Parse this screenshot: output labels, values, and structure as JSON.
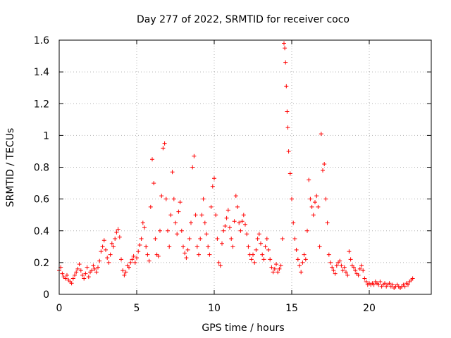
{
  "chart_data": {
    "type": "scatter",
    "title": "Day 277 of 2022, SRMTID for receiver coco",
    "xlabel": "GPS time / hours",
    "ylabel": "SRMTID / TECUs",
    "xlim": [
      0,
      24
    ],
    "ylim": [
      0,
      1.6
    ],
    "x_ticks": [
      0,
      5,
      10,
      15,
      20
    ],
    "y_ticks": [
      0,
      0.2,
      0.4,
      0.6,
      0.8,
      1,
      1.2,
      1.4,
      1.6
    ],
    "x_tick_labels": [
      "0",
      "5",
      "10",
      "15",
      "20"
    ],
    "y_tick_labels": [
      "0",
      "0.2",
      "0.4",
      "0.6",
      "0.8",
      "1",
      "1.2",
      "1.4",
      "1.6"
    ],
    "grid": true,
    "marker": "plus",
    "series": [
      {
        "name": "SRMTID",
        "color": "#ff0000",
        "points": [
          [
            0.0,
            0.15
          ],
          [
            0.1,
            0.17
          ],
          [
            0.2,
            0.13
          ],
          [
            0.3,
            0.11
          ],
          [
            0.4,
            0.1
          ],
          [
            0.5,
            0.12
          ],
          [
            0.6,
            0.09
          ],
          [
            0.7,
            0.08
          ],
          [
            0.8,
            0.07
          ],
          [
            0.9,
            0.1
          ],
          [
            1.0,
            0.12
          ],
          [
            1.1,
            0.14
          ],
          [
            1.2,
            0.16
          ],
          [
            1.3,
            0.19
          ],
          [
            1.4,
            0.15
          ],
          [
            1.5,
            0.12
          ],
          [
            1.6,
            0.1
          ],
          [
            1.7,
            0.13
          ],
          [
            1.8,
            0.17
          ],
          [
            1.9,
            0.11
          ],
          [
            2.0,
            0.14
          ],
          [
            2.1,
            0.15
          ],
          [
            2.2,
            0.18
          ],
          [
            2.3,
            0.16
          ],
          [
            2.4,
            0.14
          ],
          [
            2.5,
            0.17
          ],
          [
            2.6,
            0.21
          ],
          [
            2.7,
            0.27
          ],
          [
            2.8,
            0.3
          ],
          [
            2.9,
            0.34
          ],
          [
            3.0,
            0.28
          ],
          [
            3.1,
            0.23
          ],
          [
            3.2,
            0.2
          ],
          [
            3.3,
            0.25
          ],
          [
            3.4,
            0.32
          ],
          [
            3.5,
            0.3
          ],
          [
            3.6,
            0.35
          ],
          [
            3.7,
            0.39
          ],
          [
            3.8,
            0.41
          ],
          [
            3.9,
            0.36
          ],
          [
            4.0,
            0.22
          ],
          [
            4.1,
            0.15
          ],
          [
            4.2,
            0.12
          ],
          [
            4.3,
            0.14
          ],
          [
            4.4,
            0.18
          ],
          [
            4.5,
            0.17
          ],
          [
            4.6,
            0.2
          ],
          [
            4.7,
            0.22
          ],
          [
            4.8,
            0.24
          ],
          [
            4.9,
            0.2
          ],
          [
            5.0,
            0.23
          ],
          [
            5.1,
            0.27
          ],
          [
            5.2,
            0.31
          ],
          [
            5.3,
            0.35
          ],
          [
            5.4,
            0.45
          ],
          [
            5.5,
            0.42
          ],
          [
            5.6,
            0.3
          ],
          [
            5.7,
            0.25
          ],
          [
            5.8,
            0.21
          ],
          [
            5.9,
            0.55
          ],
          [
            6.0,
            0.85
          ],
          [
            6.1,
            0.7
          ],
          [
            6.2,
            0.35
          ],
          [
            6.3,
            0.25
          ],
          [
            6.4,
            0.24
          ],
          [
            6.5,
            0.4
          ],
          [
            6.6,
            0.62
          ],
          [
            6.7,
            0.92
          ],
          [
            6.8,
            0.95
          ],
          [
            6.9,
            0.6
          ],
          [
            7.0,
            0.4
          ],
          [
            7.1,
            0.3
          ],
          [
            7.2,
            0.5
          ],
          [
            7.3,
            0.77
          ],
          [
            7.4,
            0.6
          ],
          [
            7.5,
            0.45
          ],
          [
            7.6,
            0.38
          ],
          [
            7.7,
            0.52
          ],
          [
            7.8,
            0.58
          ],
          [
            7.9,
            0.4
          ],
          [
            8.0,
            0.3
          ],
          [
            8.1,
            0.26
          ],
          [
            8.2,
            0.23
          ],
          [
            8.3,
            0.28
          ],
          [
            8.4,
            0.35
          ],
          [
            8.5,
            0.45
          ],
          [
            8.6,
            0.8
          ],
          [
            8.7,
            0.87
          ],
          [
            8.8,
            0.5
          ],
          [
            8.9,
            0.3
          ],
          [
            9.0,
            0.25
          ],
          [
            9.1,
            0.35
          ],
          [
            9.2,
            0.5
          ],
          [
            9.3,
            0.6
          ],
          [
            9.4,
            0.45
          ],
          [
            9.5,
            0.38
          ],
          [
            9.6,
            0.3
          ],
          [
            9.7,
            0.25
          ],
          [
            9.8,
            0.55
          ],
          [
            9.9,
            0.68
          ],
          [
            10.0,
            0.73
          ],
          [
            10.1,
            0.5
          ],
          [
            10.2,
            0.35
          ],
          [
            10.3,
            0.2
          ],
          [
            10.4,
            0.18
          ],
          [
            10.5,
            0.32
          ],
          [
            10.6,
            0.4
          ],
          [
            10.7,
            0.43
          ],
          [
            10.8,
            0.48
          ],
          [
            10.9,
            0.53
          ],
          [
            11.0,
            0.42
          ],
          [
            11.1,
            0.35
          ],
          [
            11.2,
            0.3
          ],
          [
            11.3,
            0.46
          ],
          [
            11.4,
            0.62
          ],
          [
            11.5,
            0.55
          ],
          [
            11.6,
            0.45
          ],
          [
            11.7,
            0.4
          ],
          [
            11.8,
            0.46
          ],
          [
            11.9,
            0.5
          ],
          [
            12.0,
            0.44
          ],
          [
            12.1,
            0.38
          ],
          [
            12.2,
            0.3
          ],
          [
            12.3,
            0.25
          ],
          [
            12.4,
            0.22
          ],
          [
            12.5,
            0.25
          ],
          [
            12.6,
            0.2
          ],
          [
            12.7,
            0.28
          ],
          [
            12.8,
            0.35
          ],
          [
            12.9,
            0.38
          ],
          [
            13.0,
            0.32
          ],
          [
            13.1,
            0.25
          ],
          [
            13.2,
            0.22
          ],
          [
            13.3,
            0.3
          ],
          [
            13.4,
            0.35
          ],
          [
            13.5,
            0.28
          ],
          [
            13.6,
            0.22
          ],
          [
            13.7,
            0.17
          ],
          [
            13.8,
            0.14
          ],
          [
            13.9,
            0.16
          ],
          [
            14.0,
            0.19
          ],
          [
            14.1,
            0.14
          ],
          [
            14.2,
            0.16
          ],
          [
            14.3,
            0.18
          ],
          [
            14.4,
            0.35
          ],
          [
            14.5,
            1.58
          ],
          [
            14.55,
            1.55
          ],
          [
            14.6,
            1.46
          ],
          [
            14.65,
            1.31
          ],
          [
            14.7,
            1.15
          ],
          [
            14.75,
            1.05
          ],
          [
            14.8,
            0.9
          ],
          [
            14.9,
            0.76
          ],
          [
            15.0,
            0.6
          ],
          [
            15.1,
            0.45
          ],
          [
            15.2,
            0.35
          ],
          [
            15.3,
            0.28
          ],
          [
            15.4,
            0.22
          ],
          [
            15.5,
            0.18
          ],
          [
            15.6,
            0.14
          ],
          [
            15.7,
            0.2
          ],
          [
            15.8,
            0.25
          ],
          [
            15.9,
            0.22
          ],
          [
            16.0,
            0.4
          ],
          [
            16.1,
            0.72
          ],
          [
            16.2,
            0.6
          ],
          [
            16.3,
            0.55
          ],
          [
            16.4,
            0.5
          ],
          [
            16.5,
            0.58
          ],
          [
            16.6,
            0.62
          ],
          [
            16.7,
            0.55
          ],
          [
            16.8,
            0.3
          ],
          [
            16.9,
            1.01
          ],
          [
            17.0,
            0.78
          ],
          [
            17.1,
            0.82
          ],
          [
            17.2,
            0.6
          ],
          [
            17.3,
            0.45
          ],
          [
            17.4,
            0.25
          ],
          [
            17.5,
            0.2
          ],
          [
            17.6,
            0.17
          ],
          [
            17.7,
            0.15
          ],
          [
            17.8,
            0.13
          ],
          [
            17.9,
            0.18
          ],
          [
            18.0,
            0.2
          ],
          [
            18.1,
            0.21
          ],
          [
            18.2,
            0.18
          ],
          [
            18.3,
            0.15
          ],
          [
            18.4,
            0.17
          ],
          [
            18.5,
            0.14
          ],
          [
            18.6,
            0.12
          ],
          [
            18.7,
            0.27
          ],
          [
            18.8,
            0.22
          ],
          [
            18.9,
            0.18
          ],
          [
            19.0,
            0.17
          ],
          [
            19.1,
            0.15
          ],
          [
            19.2,
            0.13
          ],
          [
            19.3,
            0.12
          ],
          [
            19.4,
            0.16
          ],
          [
            19.5,
            0.18
          ],
          [
            19.6,
            0.15
          ],
          [
            19.7,
            0.1
          ],
          [
            19.8,
            0.08
          ],
          [
            19.9,
            0.06
          ],
          [
            20.0,
            0.07
          ],
          [
            20.1,
            0.06
          ],
          [
            20.2,
            0.07
          ],
          [
            20.3,
            0.06
          ],
          [
            20.4,
            0.08
          ],
          [
            20.5,
            0.07
          ],
          [
            20.6,
            0.06
          ],
          [
            20.7,
            0.08
          ],
          [
            20.8,
            0.05
          ],
          [
            20.9,
            0.06
          ],
          [
            21.0,
            0.07
          ],
          [
            21.1,
            0.05
          ],
          [
            21.2,
            0.06
          ],
          [
            21.3,
            0.07
          ],
          [
            21.4,
            0.05
          ],
          [
            21.5,
            0.06
          ],
          [
            21.6,
            0.04
          ],
          [
            21.7,
            0.05
          ],
          [
            21.8,
            0.06
          ],
          [
            21.9,
            0.05
          ],
          [
            22.0,
            0.04
          ],
          [
            22.1,
            0.05
          ],
          [
            22.2,
            0.06
          ],
          [
            22.3,
            0.05
          ],
          [
            22.4,
            0.07
          ],
          [
            22.5,
            0.06
          ],
          [
            22.6,
            0.08
          ],
          [
            22.7,
            0.09
          ],
          [
            22.8,
            0.1
          ]
        ]
      }
    ]
  }
}
